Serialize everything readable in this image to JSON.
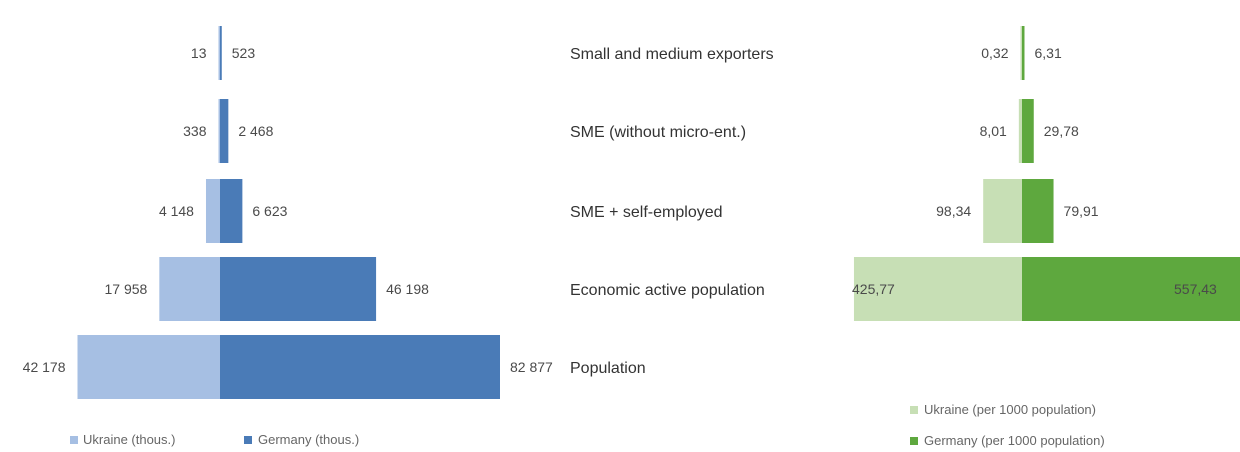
{
  "chart_data": [
    {
      "type": "bar",
      "orientation": "horizontal-butterfly",
      "categories": [
        "Small and medium exporters",
        "SME (without micro-ent.)",
        "SME + self-employed",
        "Economic active population",
        "Population"
      ],
      "series": [
        {
          "name": "Ukraine (thous.)",
          "color": "#a6bfe3",
          "values": [
            13,
            338,
            4148,
            17958,
            42178
          ],
          "labels": [
            "13",
            "338",
            "4 148",
            "17 958",
            "42 178"
          ]
        },
        {
          "name": "Germany (thous.)",
          "color": "#4a7bb7",
          "values": [
            523,
            2468,
            6623,
            46198,
            82877
          ],
          "labels": [
            "523",
            "2 468",
            "6 623",
            "46 198",
            "82 877"
          ]
        }
      ]
    },
    {
      "type": "bar",
      "orientation": "horizontal-butterfly",
      "categories": [
        "Small and medium exporters",
        "SME (without micro-ent.)",
        "SME + self-employed",
        "Economic active population"
      ],
      "series": [
        {
          "name": "Ukraine (per 1000 population)",
          "color": "#c7dfb5",
          "values": [
            0.32,
            8.01,
            98.34,
            425.77
          ],
          "labels": [
            "0,32",
            "8,01",
            "98,34",
            "425,77"
          ]
        },
        {
          "name": "Germany (per 1000 population)",
          "color": "#5ea83e",
          "values": [
            6.31,
            29.78,
            79.91,
            557.43
          ],
          "labels": [
            "6,31",
            "29,78",
            "79,91",
            "557,43"
          ]
        }
      ]
    }
  ]
}
